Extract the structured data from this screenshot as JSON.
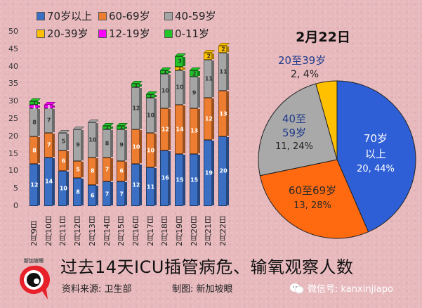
{
  "legend": [
    {
      "label": "70岁以上",
      "color": "#3a6fc4"
    },
    {
      "label": "60-69岁",
      "color": "#ed7d31"
    },
    {
      "label": "40-59岁",
      "color": "#a5a5a5"
    },
    {
      "label": "20-39岁",
      "color": "#ffc000"
    },
    {
      "label": "12-19岁",
      "color": "#ff00ff"
    },
    {
      "label": "0-11岁",
      "color": "#22c42a"
    }
  ],
  "pie": {
    "title": "2月22日",
    "labels": [
      {
        "name": "70岁\n以上",
        "line1": "70岁",
        "line2": "以上",
        "value": "20, 44%"
      },
      {
        "name": "60至69岁",
        "line1": "60至69岁",
        "value": "13, 28%"
      },
      {
        "name": "40至59岁",
        "line1": "40至",
        "line2": "59岁",
        "value": "11, 24%"
      },
      {
        "name": "20至39岁",
        "line1": "20至39岁",
        "value": "2, 4%"
      }
    ]
  },
  "footer": {
    "title": "过去14天ICU插管病危、输氧观察人数",
    "source": "资料来源:  卫生部",
    "maker": "制图:  新加坡眼",
    "wechat": "微信号: kanxinjiapo"
  },
  "chart_data": [
    {
      "type": "bar",
      "stacked": true,
      "title": "",
      "xlabel": "",
      "ylabel": "",
      "ylim": [
        0,
        50
      ],
      "yticks": [
        0,
        5,
        10,
        15,
        20,
        25,
        30,
        35,
        40,
        45,
        50
      ],
      "categories": [
        "2月9日",
        "2月10日",
        "2月11日",
        "2月12日",
        "2月13日",
        "2月14日",
        "2月15日",
        "2月16日",
        "2月17日",
        "2月18日",
        "2月19日",
        "2月20日",
        "2月21日",
        "2月22日"
      ],
      "series": [
        {
          "name": "70岁以上",
          "color": "#3a6fc4",
          "values": [
            12,
            14,
            10,
            8,
            6,
            7,
            7,
            12,
            11,
            16,
            15,
            15,
            19,
            20
          ]
        },
        {
          "name": "60-69岁",
          "color": "#ed7d31",
          "values": [
            8,
            7,
            6,
            5,
            8,
            7,
            6,
            10,
            10,
            12,
            14,
            13,
            12,
            13
          ]
        },
        {
          "name": "40-59岁",
          "color": "#a5a5a5",
          "values": [
            8,
            7,
            5,
            9,
            10,
            8,
            9,
            12,
            10,
            10,
            10,
            9,
            11,
            11
          ]
        },
        {
          "name": "20-39岁",
          "color": "#ffc000",
          "values": [
            0,
            0,
            0,
            0,
            0,
            0,
            0,
            0,
            0,
            0,
            1,
            0,
            2,
            2
          ]
        },
        {
          "name": "12-19岁",
          "color": "#ff00ff",
          "values": [
            1,
            1,
            0,
            0,
            0,
            0,
            0,
            0,
            0,
            0,
            0,
            0,
            0,
            0
          ]
        },
        {
          "name": "0-11岁",
          "color": "#22c42a",
          "values": [
            1,
            0,
            0,
            0,
            0,
            1,
            1,
            1,
            1,
            1,
            3,
            2,
            0,
            0
          ]
        }
      ],
      "legend_position": "top"
    },
    {
      "type": "pie",
      "title": "2月22日",
      "categories": [
        "70岁以上",
        "60至69岁",
        "40至59岁",
        "20至39岁"
      ],
      "values": [
        20,
        13,
        11,
        2
      ],
      "percents": [
        44,
        28,
        24,
        4
      ],
      "colors": [
        "#2f5fd6",
        "#ff6a10",
        "#a9a9a9",
        "#ffc000"
      ]
    }
  ]
}
